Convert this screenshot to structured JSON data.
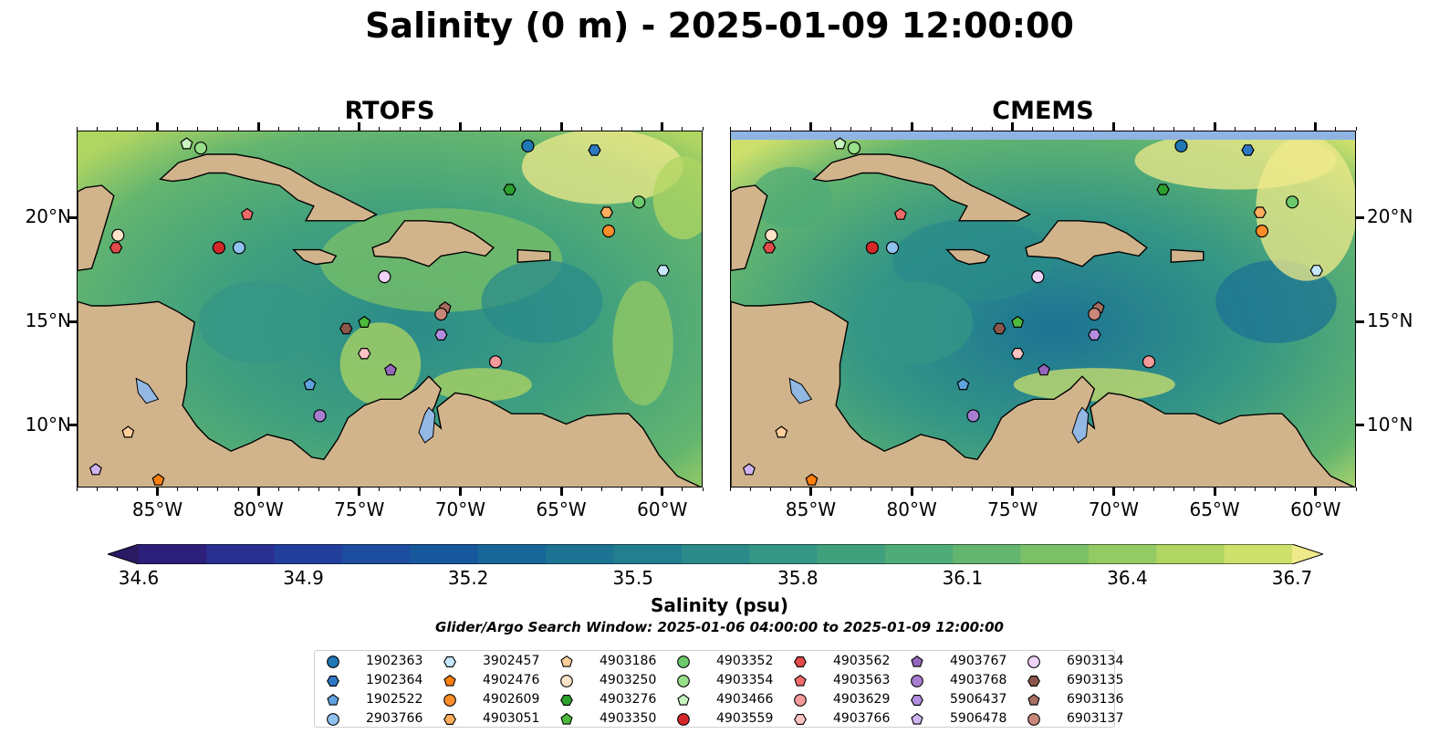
{
  "title": "Salinity (0 m) - 2025-01-09 12:00:00",
  "panels": [
    {
      "title": "RTOFS"
    },
    {
      "title": "CMEMS"
    }
  ],
  "map": {
    "lon_range": [
      -89,
      -58
    ],
    "lat_range": [
      7,
      24.2
    ],
    "lon_ticks": [
      {
        "v": -85,
        "label": "85°W"
      },
      {
        "v": -80,
        "label": "80°W"
      },
      {
        "v": -75,
        "label": "75°W"
      },
      {
        "v": -70,
        "label": "70°W"
      },
      {
        "v": -65,
        "label": "65°W"
      },
      {
        "v": -60,
        "label": "60°W"
      }
    ],
    "lat_ticks": [
      {
        "v": 20,
        "label": "20°N"
      },
      {
        "v": 15,
        "label": "15°N"
      },
      {
        "v": 10,
        "label": "10°N"
      }
    ],
    "colors": {
      "land": "#d2b48c",
      "lake": "#93b8e4",
      "deep": "#2b1c6b",
      "nodata": "#8fb4e3"
    }
  },
  "colorbar": {
    "label": "Salinity (psu)",
    "ticks": [
      "34.6",
      "34.9",
      "35.2",
      "35.5",
      "35.8",
      "36.1",
      "36.4",
      "36.7"
    ],
    "min": 34.6,
    "max": 36.7,
    "colors": [
      "#2a1a63",
      "#2c1f7a",
      "#293091",
      "#233f9c",
      "#1c4d9e",
      "#17589c",
      "#186799",
      "#1c7394",
      "#227f8f",
      "#2a8b8a",
      "#349685",
      "#40a07e",
      "#4fab77",
      "#63b56f",
      "#7bc067",
      "#94ca63",
      "#b0d562",
      "#cde06c",
      "#f0ea8b"
    ]
  },
  "search_window": "Glider/Argo Search Window: 2025-01-06 04:00:00 to 2025-01-09 12:00:00",
  "floats": [
    {
      "id": "1902363",
      "marker": "circle",
      "color": "#1f77b4",
      "lon": -66.7,
      "lat": 23.5
    },
    {
      "id": "1902364",
      "marker": "hexagon",
      "color": "#2e78c2",
      "lon": -63.4,
      "lat": 23.3
    },
    {
      "id": "1902522",
      "marker": "pentagon",
      "color": "#5fa2dd",
      "lon": -77.5,
      "lat": 12.0
    },
    {
      "id": "2903766",
      "marker": "circle",
      "color": "#8fc2ee",
      "lon": -81.0,
      "lat": 18.6
    },
    {
      "id": "3902457",
      "marker": "hexagon",
      "color": "#c6e7fb",
      "lon": -60.0,
      "lat": 17.5
    },
    {
      "id": "4902476",
      "marker": "pentagon",
      "color": "#ff7f0e",
      "lon": -85.0,
      "lat": 7.4
    },
    {
      "id": "4902609",
      "marker": "circle",
      "color": "#ff8c2a",
      "lon": -62.7,
      "lat": 19.4
    },
    {
      "id": "4903051",
      "marker": "hexagon",
      "color": "#ffad5c",
      "lon": -62.8,
      "lat": 20.3
    },
    {
      "id": "4903186",
      "marker": "pentagon",
      "color": "#ffcf99",
      "lon": -86.5,
      "lat": 9.7
    },
    {
      "id": "4903250",
      "marker": "circle",
      "color": "#ffe3c8",
      "lon": -87.0,
      "lat": 19.2
    },
    {
      "id": "4903276",
      "marker": "hexagon",
      "color": "#2ca02c",
      "lon": -67.6,
      "lat": 21.4
    },
    {
      "id": "4903350",
      "marker": "pentagon",
      "color": "#4cbb3c",
      "lon": -74.8,
      "lat": 15.0
    },
    {
      "id": "4903352",
      "marker": "circle",
      "color": "#6cc96c",
      "lon": -61.2,
      "lat": 20.8
    },
    {
      "id": "4903354",
      "marker": "circle",
      "color": "#98df8a",
      "lon": -82.9,
      "lat": 23.4
    },
    {
      "id": "4903466",
      "marker": "pentagon",
      "color": "#c8f5c0",
      "lon": -83.6,
      "lat": 23.6
    },
    {
      "id": "4903559",
      "marker": "circle",
      "color": "#d62728",
      "lon": -82.0,
      "lat": 18.6
    },
    {
      "id": "4903562",
      "marker": "hexagon",
      "color": "#e34a4a",
      "lon": -87.1,
      "lat": 18.6
    },
    {
      "id": "4903563",
      "marker": "pentagon",
      "color": "#ef6a6a",
      "lon": -80.6,
      "lat": 20.2
    },
    {
      "id": "4903629",
      "marker": "circle",
      "color": "#f59a9a",
      "lon": -68.3,
      "lat": 13.1
    },
    {
      "id": "4903766",
      "marker": "hexagon",
      "color": "#fbc4c4",
      "lon": -74.8,
      "lat": 13.5
    },
    {
      "id": "4903767",
      "marker": "pentagon",
      "color": "#9467bd",
      "lon": -73.5,
      "lat": 12.7
    },
    {
      "id": "4903768",
      "marker": "circle",
      "color": "#a77ed0",
      "lon": -77.0,
      "lat": 10.5
    },
    {
      "id": "5906437",
      "marker": "hexagon",
      "color": "#b48ee0",
      "lon": -71.0,
      "lat": 14.4
    },
    {
      "id": "5906478",
      "marker": "pentagon",
      "color": "#cfb4f2",
      "lon": -88.1,
      "lat": 7.9
    },
    {
      "id": "6903134",
      "marker": "circle",
      "color": "#efd4f7",
      "lon": -73.8,
      "lat": 17.2
    },
    {
      "id": "6903135",
      "marker": "hexagon",
      "color": "#8c564b",
      "lon": -75.7,
      "lat": 14.7
    },
    {
      "id": "6903136",
      "marker": "pentagon",
      "color": "#a66d60",
      "lon": -70.8,
      "lat": 15.7
    },
    {
      "id": "6903137",
      "marker": "circle",
      "color": "#c8877a",
      "lon": -71.0,
      "lat": 15.4
    }
  ]
}
